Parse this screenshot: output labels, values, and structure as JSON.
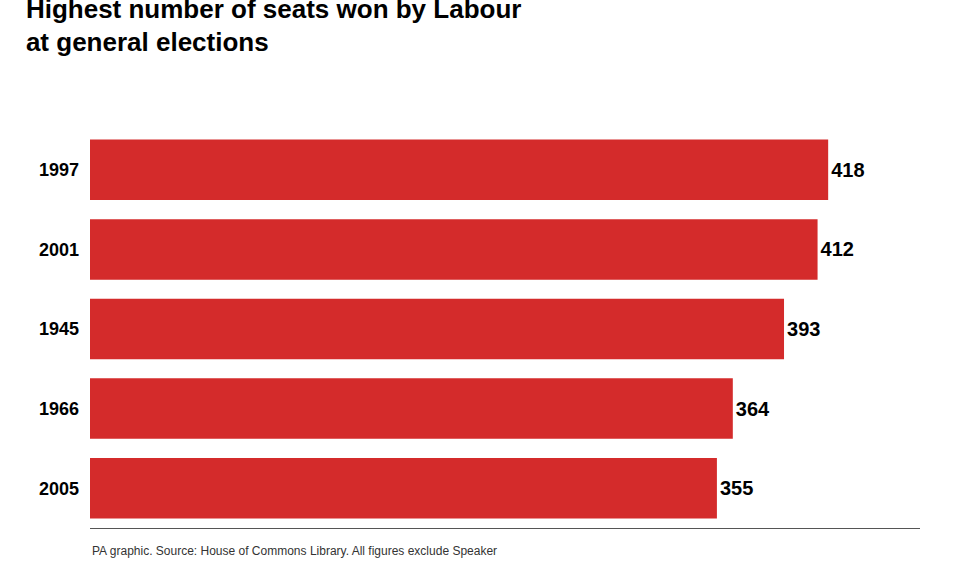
{
  "chart_data": {
    "type": "bar",
    "orientation": "horizontal",
    "title": "Highest number of seats won by Labour",
    "subtitle": "at general elections",
    "categories": [
      "1997",
      "2001",
      "1945",
      "1966",
      "2005"
    ],
    "values": [
      418,
      412,
      393,
      364,
      355
    ],
    "color": "#d42b2b",
    "xlim": [
      0,
      470
    ],
    "data_labels": true,
    "tick_labels": "y",
    "grid": false,
    "annotations": [
      "PA graphic. Source: House of Commons Library. All figures exclude Speaker"
    ]
  }
}
